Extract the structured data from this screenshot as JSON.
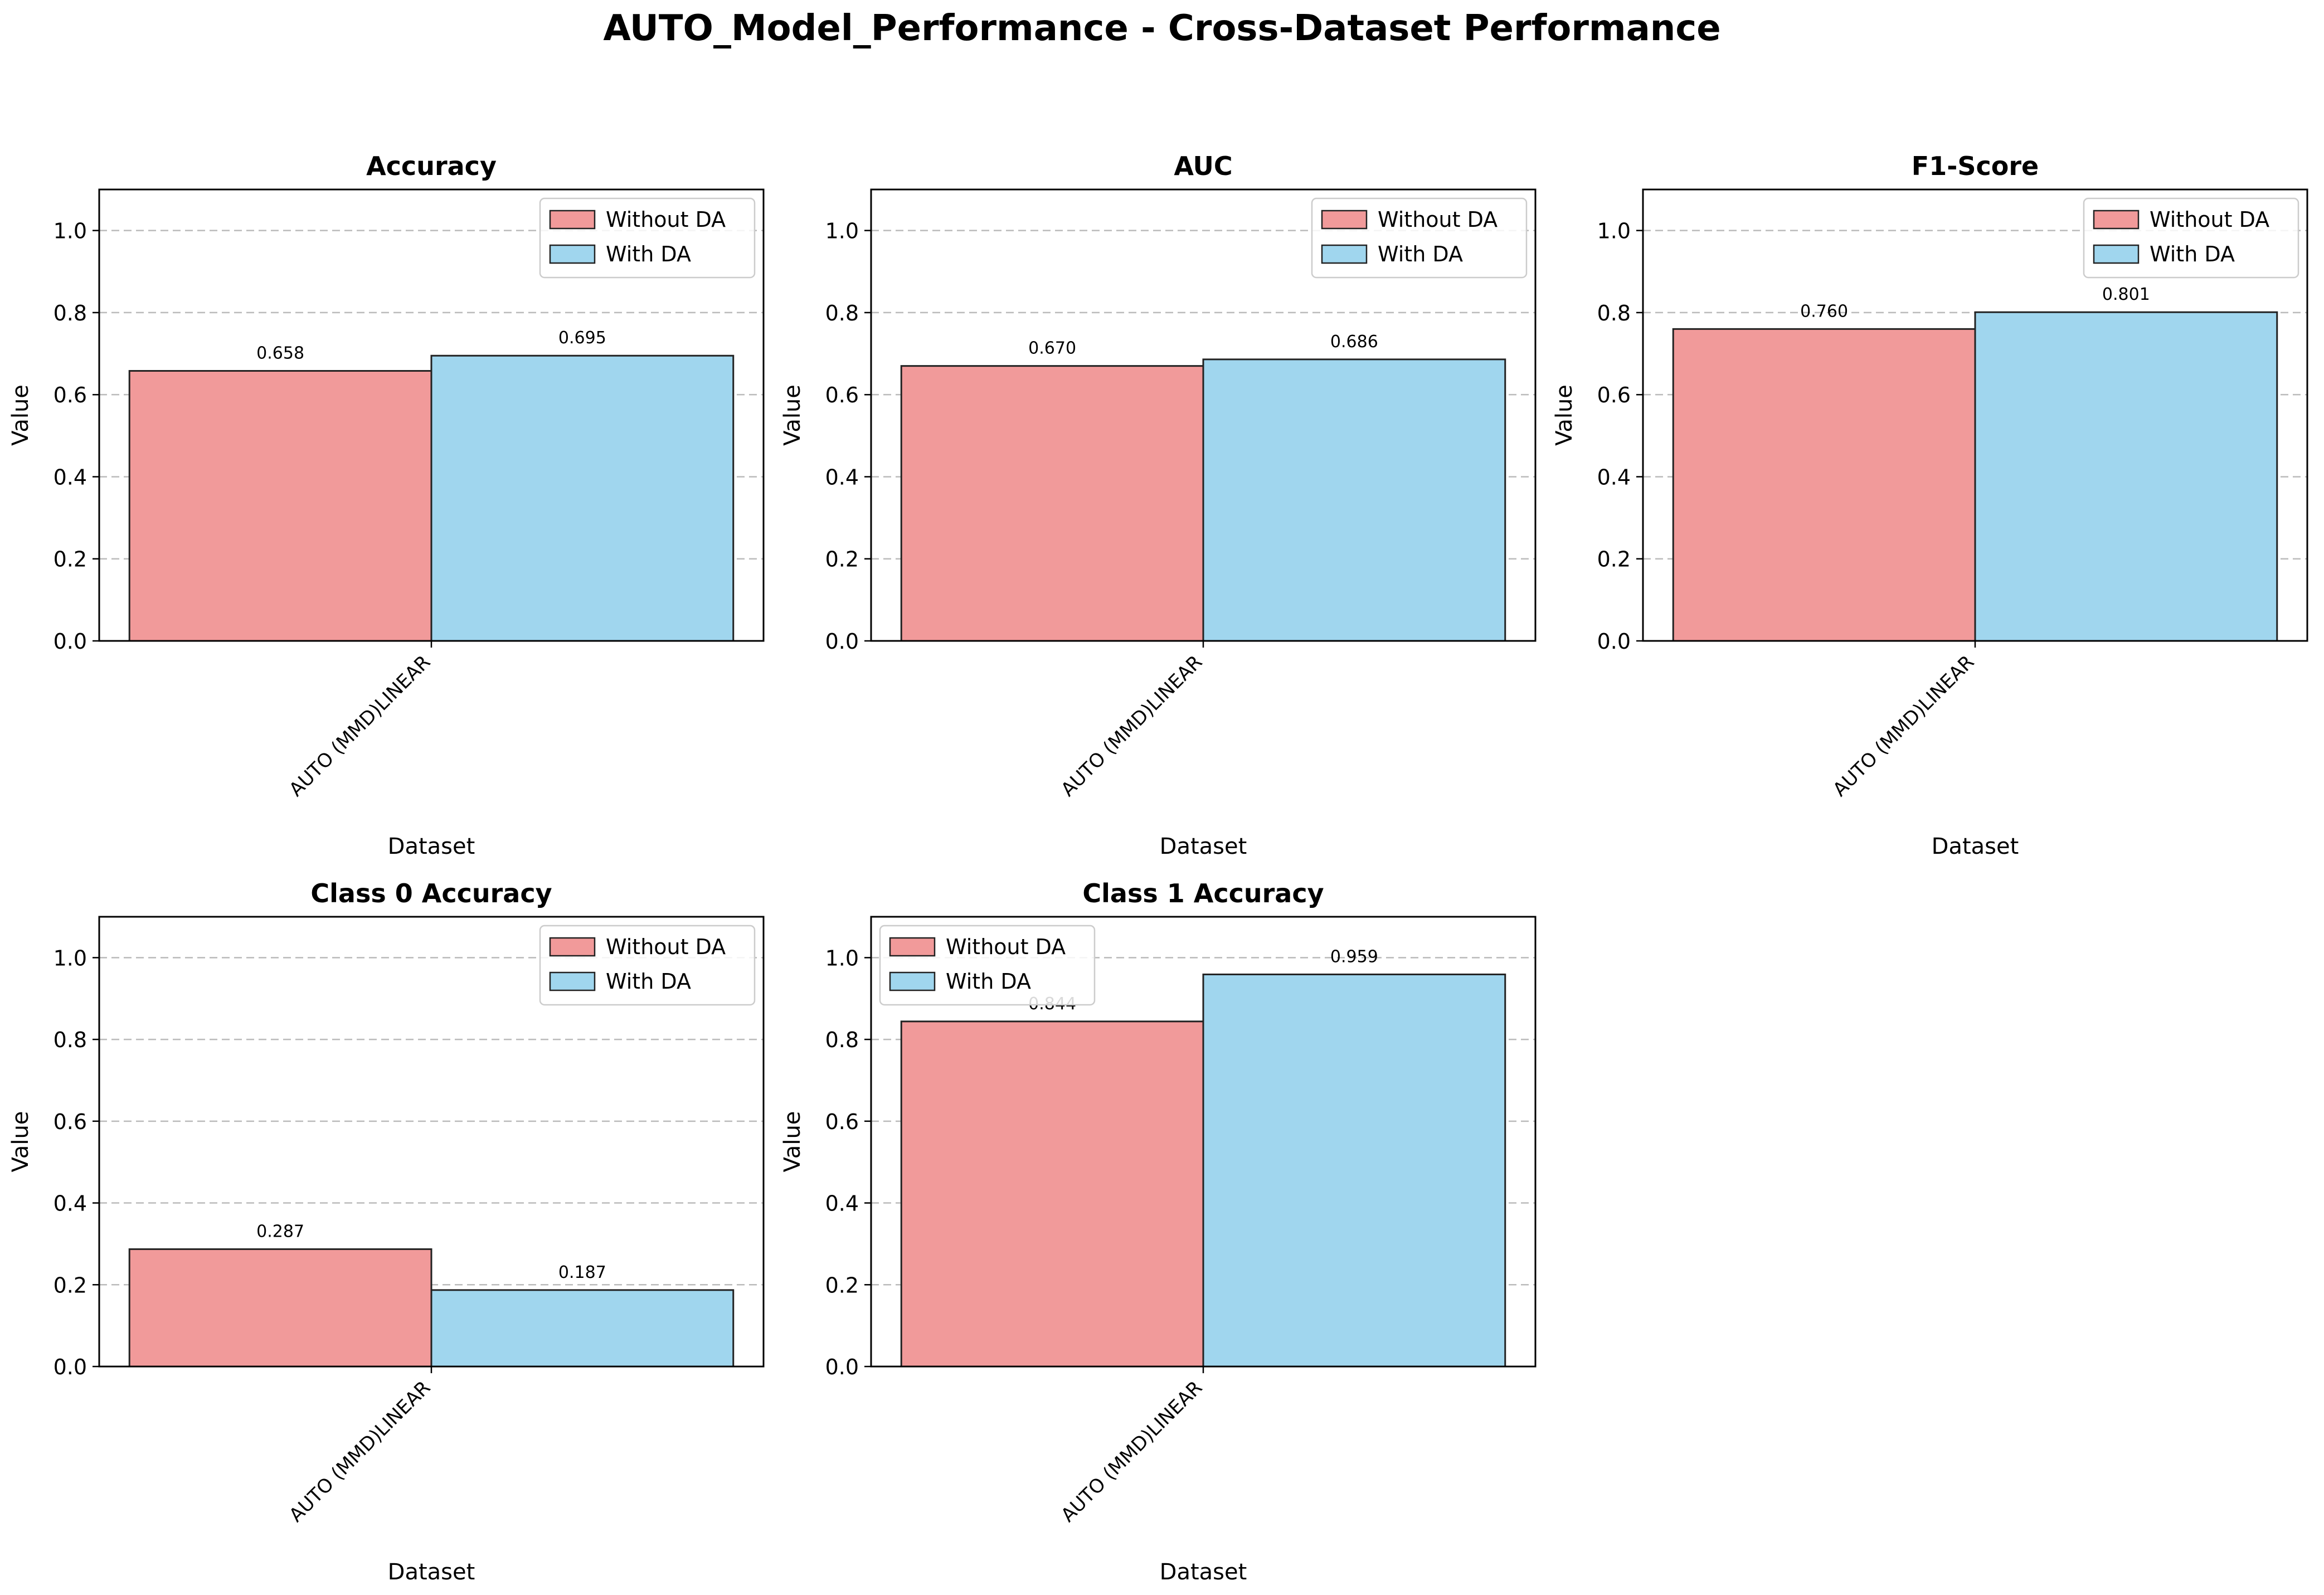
{
  "figure": {
    "title": "AUTO_Model_Performance - Cross-Dataset Performance"
  },
  "colors": {
    "without_da": "#f19a9a",
    "with_da": "#a0d6ee",
    "edge": "#222222",
    "grid": "#bbbbbb"
  },
  "chart_data": [
    {
      "type": "bar",
      "title": "Accuracy",
      "xlabel": "Dataset",
      "ylabel": "Value",
      "categories": [
        "AUTO (MMD)LINEAR"
      ],
      "ylim": [
        0,
        1.1
      ],
      "yticks": [
        "0.0",
        "0.2",
        "0.4",
        "0.6",
        "0.8",
        "1.0"
      ],
      "grid": "y, dashed",
      "legend_position": "upper right",
      "series": [
        {
          "name": "Without DA",
          "values": [
            0.658
          ],
          "labels": [
            "0.658"
          ]
        },
        {
          "name": "With DA",
          "values": [
            0.695
          ],
          "labels": [
            "0.695"
          ]
        }
      ]
    },
    {
      "type": "bar",
      "title": "AUC",
      "xlabel": "Dataset",
      "ylabel": "Value",
      "categories": [
        "AUTO (MMD)LINEAR"
      ],
      "ylim": [
        0,
        1.1
      ],
      "yticks": [
        "0.0",
        "0.2",
        "0.4",
        "0.6",
        "0.8",
        "1.0"
      ],
      "grid": "y, dashed",
      "legend_position": "upper right",
      "series": [
        {
          "name": "Without DA",
          "values": [
            0.67
          ],
          "labels": [
            "0.670"
          ]
        },
        {
          "name": "With DA",
          "values": [
            0.686
          ],
          "labels": [
            "0.686"
          ]
        }
      ]
    },
    {
      "type": "bar",
      "title": "F1-Score",
      "xlabel": "Dataset",
      "ylabel": "Value",
      "categories": [
        "AUTO (MMD)LINEAR"
      ],
      "ylim": [
        0,
        1.1
      ],
      "yticks": [
        "0.0",
        "0.2",
        "0.4",
        "0.6",
        "0.8",
        "1.0"
      ],
      "grid": "y, dashed",
      "legend_position": "upper right",
      "series": [
        {
          "name": "Without DA",
          "values": [
            0.76
          ],
          "labels": [
            "0.760"
          ]
        },
        {
          "name": "With DA",
          "values": [
            0.801
          ],
          "labels": [
            "0.801"
          ]
        }
      ]
    },
    {
      "type": "bar",
      "title": "Class 0 Accuracy",
      "xlabel": "Dataset",
      "ylabel": "Value",
      "categories": [
        "AUTO (MMD)LINEAR"
      ],
      "ylim": [
        0,
        1.1
      ],
      "yticks": [
        "0.0",
        "0.2",
        "0.4",
        "0.6",
        "0.8",
        "1.0"
      ],
      "grid": "y, dashed",
      "legend_position": "upper right",
      "series": [
        {
          "name": "Without DA",
          "values": [
            0.287
          ],
          "labels": [
            "0.287"
          ]
        },
        {
          "name": "With DA",
          "values": [
            0.187
          ],
          "labels": [
            "0.187"
          ]
        }
      ]
    },
    {
      "type": "bar",
      "title": "Class 1 Accuracy",
      "xlabel": "Dataset",
      "ylabel": "Value",
      "categories": [
        "AUTO (MMD)LINEAR"
      ],
      "ylim": [
        0,
        1.1
      ],
      "yticks": [
        "0.0",
        "0.2",
        "0.4",
        "0.6",
        "0.8",
        "1.0"
      ],
      "grid": "y, dashed",
      "legend_position": "upper left",
      "series": [
        {
          "name": "Without DA",
          "values": [
            0.844
          ],
          "labels": [
            "0.844"
          ]
        },
        {
          "name": "With DA",
          "values": [
            0.959
          ],
          "labels": [
            "0.959"
          ]
        }
      ]
    }
  ]
}
